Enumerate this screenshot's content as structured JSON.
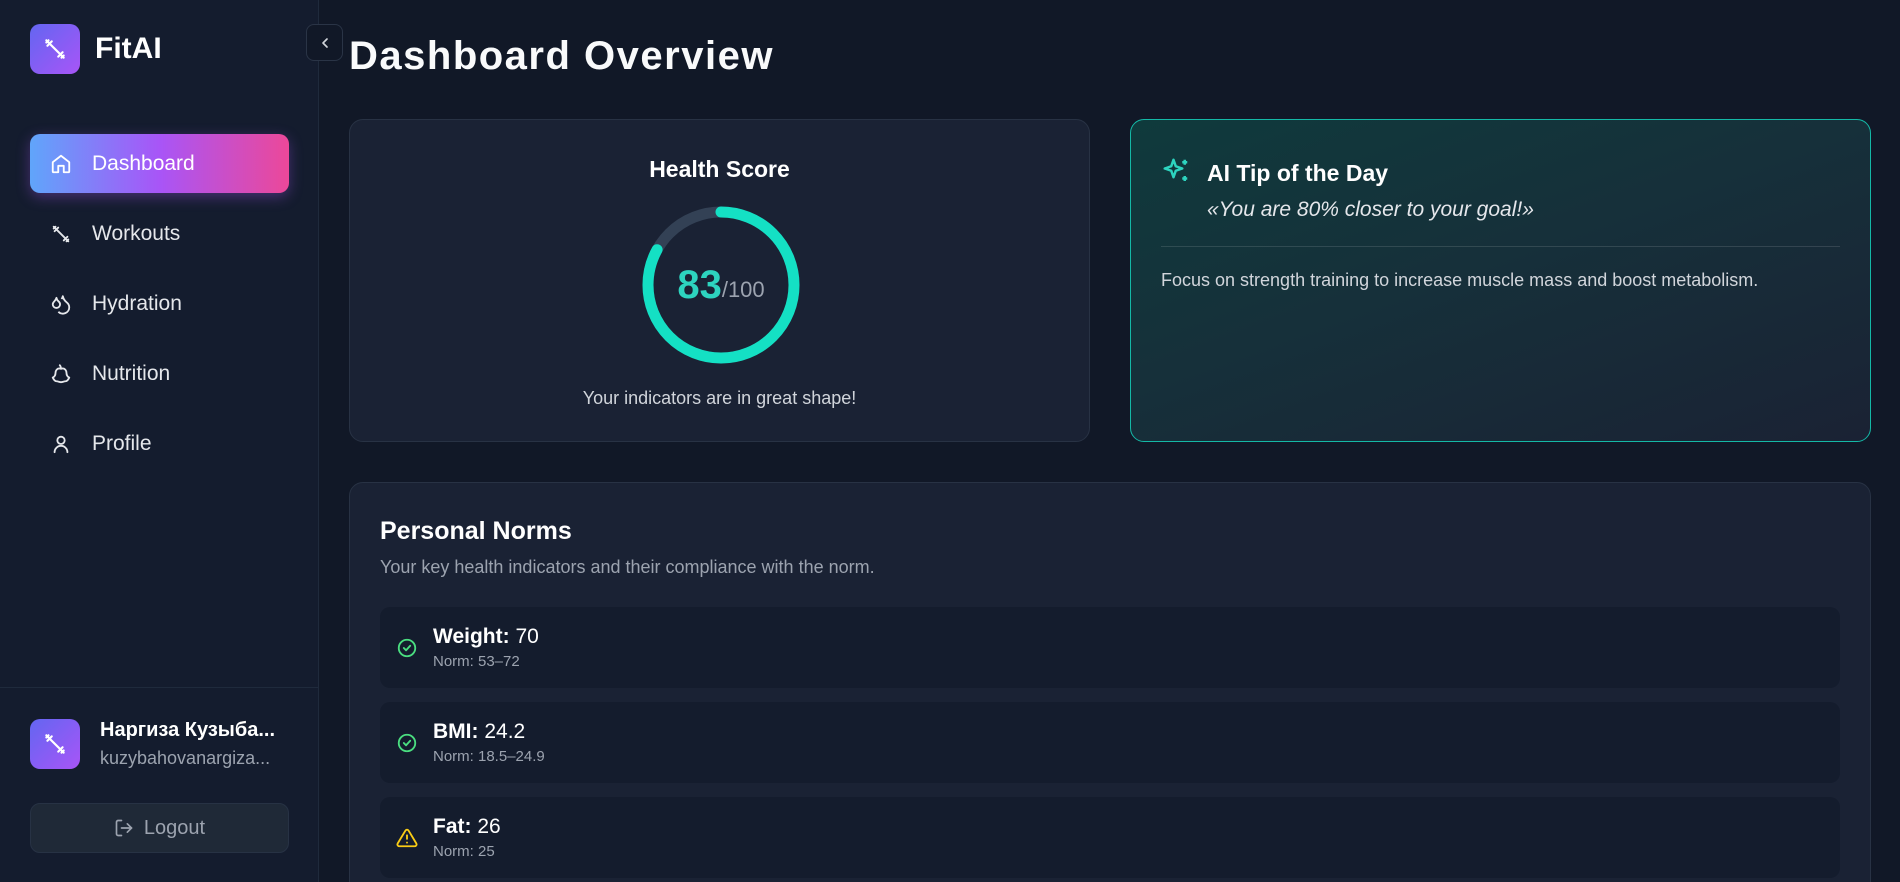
{
  "app": {
    "name": "FitAI"
  },
  "nav": {
    "items": [
      {
        "label": "Dashboard",
        "icon": "home-icon",
        "active": true
      },
      {
        "label": "Workouts",
        "icon": "dumbbell-icon"
      },
      {
        "label": "Hydration",
        "icon": "droplets-icon"
      },
      {
        "label": "Nutrition",
        "icon": "apple-icon"
      },
      {
        "label": "Profile",
        "icon": "user-icon"
      }
    ]
  },
  "user": {
    "name": "Наргиза Кузыба...",
    "email": "kuzybahovanargiza..."
  },
  "logout": {
    "label": "Logout"
  },
  "page": {
    "title": "Dashboard Overview"
  },
  "health": {
    "title": "Health Score",
    "score": "83",
    "max": "/100",
    "score_fraction": 0.83,
    "message": "Your indicators are in great shape!"
  },
  "tip": {
    "title": "AI Tip of the Day",
    "quote": "«You are 80% closer to your goal!»",
    "text": "Focus on strength training to increase muscle mass and boost metabolism."
  },
  "norms": {
    "title": "Personal Norms",
    "subtitle": "Your key health indicators and their compliance with the norm.",
    "rows": [
      {
        "name": "Weight:",
        "value": " 70",
        "range": "Norm: 53–72",
        "status": "ok"
      },
      {
        "name": "BMI:",
        "value": " 24.2",
        "range": "Norm: 18.5–24.9",
        "status": "ok"
      },
      {
        "name": "Fat:",
        "value": " 26",
        "range": "Norm: 25",
        "status": "warning"
      }
    ]
  },
  "colors": {
    "accent": "#2dd4bf",
    "ok": "#4ade80",
    "warning": "#facc15",
    "brand_start": "#6366f1",
    "brand_end": "#a855f7"
  }
}
